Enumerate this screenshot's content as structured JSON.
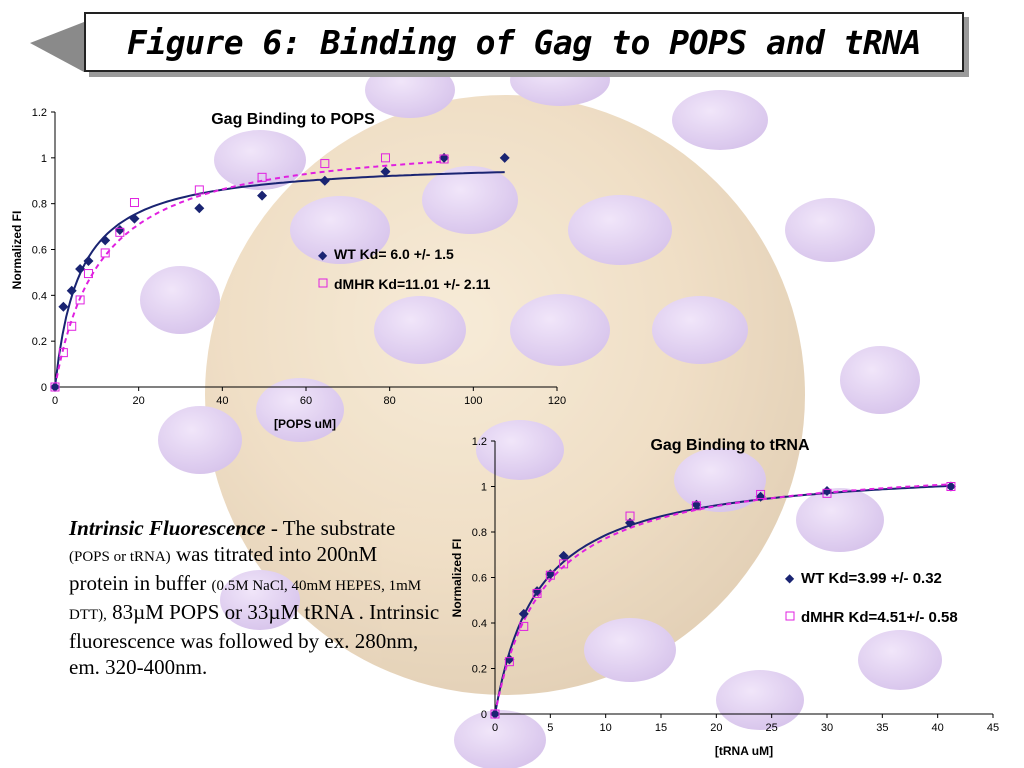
{
  "slide": {
    "title": "Figure 6: Binding of Gag to POPS and tRNA"
  },
  "caption": {
    "heading": "Intrinsic Fluorescence",
    "p1": " - The substrate ",
    "p2": "(POPS or tRNA)",
    "p3": " was titrated into 200nM protein in buffer ",
    "p4": "(0.5M NaCl, 40mM HEPES, 1mM DTT),",
    "p5": " 83µM POPS or 33µM tRNA .  Intrinsic fluorescence was followed by ex. 280nm, em. 320-400nm."
  },
  "colors": {
    "wt": "#1a2472",
    "dmhr": "#e020e0",
    "background_virus": "#e6c79a",
    "background_spikes": "#c9a8e8"
  },
  "chart_data": [
    {
      "type": "scatter",
      "title": "Gag Binding to POPS",
      "xlabel": "[POPS uM]",
      "ylabel": "Normalized FI",
      "xlim": [
        0,
        120
      ],
      "ylim": [
        0,
        1.2
      ],
      "xticks": [
        "0",
        "20",
        "40",
        "60",
        "80",
        "100",
        "120"
      ],
      "yticks": [
        "0",
        "0.2",
        "0.4",
        "0.6",
        "0.8",
        "1",
        "1.2"
      ],
      "legend_position": "center-right",
      "series": [
        {
          "name": "WT Kd= 6.0 +/- 1.5",
          "marker": "diamond",
          "fit": "solid",
          "x": [
            0,
            2,
            4,
            6,
            8,
            12,
            15.5,
            19,
            34.5,
            49.5,
            64.5,
            79,
            93,
            107.5
          ],
          "y": [
            0,
            0.35,
            0.42,
            0.515,
            0.55,
            0.64,
            0.685,
            0.735,
            0.78,
            0.835,
            0.9,
            0.94,
            1.0,
            1.0
          ]
        },
        {
          "name": "dMHR Kd=11.01 +/- 2.11",
          "marker": "square-open",
          "fit": "dashed",
          "x": [
            0,
            2,
            4,
            6,
            8,
            12,
            15.5,
            19,
            34.5,
            49.5,
            64.5,
            79,
            93
          ],
          "y": [
            0,
            0.15,
            0.265,
            0.38,
            0.495,
            0.585,
            0.675,
            0.805,
            0.86,
            0.915,
            0.975,
            1.0,
            0.995
          ]
        }
      ]
    },
    {
      "type": "scatter",
      "title": "Gag Binding to tRNA",
      "xlabel": "[tRNA uM]",
      "ylabel": "Normalized FI",
      "xlim": [
        0,
        45
      ],
      "ylim": [
        0,
        1.2
      ],
      "xticks": [
        "0",
        "5",
        "10",
        "15",
        "20",
        "25",
        "30",
        "35",
        "40",
        "45"
      ],
      "yticks": [
        "0",
        "0.2",
        "0.4",
        "0.6",
        "0.8",
        "1",
        "1.2"
      ],
      "legend_position": "right",
      "series": [
        {
          "name": "WT Kd=3.99 +/- 0.32",
          "marker": "diamond",
          "fit": "solid",
          "x": [
            0,
            1.3,
            2.6,
            3.8,
            5,
            6.2,
            12.2,
            18.2,
            24,
            30,
            41.2
          ],
          "y": [
            0,
            0.24,
            0.44,
            0.54,
            0.615,
            0.695,
            0.84,
            0.92,
            0.955,
            0.98,
            1.0
          ]
        },
        {
          "name": "dMHR Kd=4.51+/- 0.58",
          "marker": "square-open",
          "fit": "dashed",
          "x": [
            0,
            1.3,
            2.6,
            3.8,
            5,
            6.2,
            12.2,
            18.2,
            24,
            30,
            41.2
          ],
          "y": [
            0,
            0.23,
            0.385,
            0.53,
            0.61,
            0.66,
            0.87,
            0.915,
            0.965,
            0.97,
            1.0
          ]
        }
      ]
    }
  ]
}
